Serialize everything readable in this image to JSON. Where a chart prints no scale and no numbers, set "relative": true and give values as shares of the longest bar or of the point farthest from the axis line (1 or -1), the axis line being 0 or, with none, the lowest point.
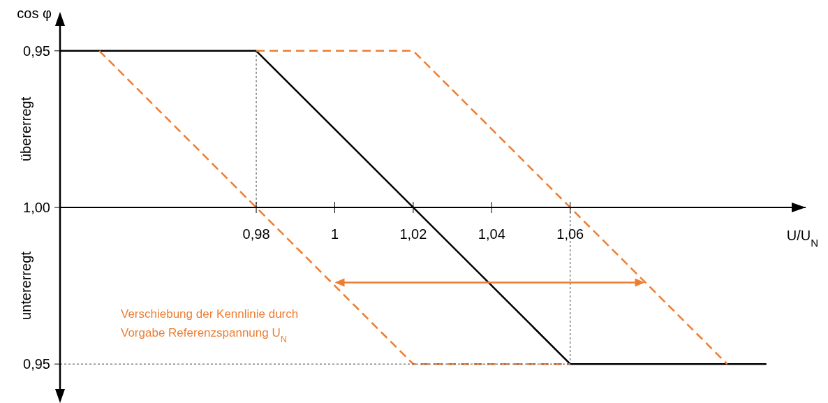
{
  "chart_data": {
    "type": "line",
    "ylabel": "cos φ",
    "xlabel": "U/U$_{N}$",
    "xlim": [
      0.93,
      1.12
    ],
    "relative": true,
    "xticks": [
      {
        "value": 0.98,
        "label": "0,98"
      },
      {
        "value": 1,
        "label": "1"
      },
      {
        "value": 1.02,
        "label": "1,02"
      },
      {
        "value": 1.04,
        "label": "1,04"
      },
      {
        "value": 1.06,
        "label": "1,06"
      }
    ],
    "grid": false,
    "series": [
      {
        "color": "#000000",
        "x": [
          0.93,
          0.98,
          1.06,
          1.11
        ],
        "values": [
          1,
          1,
          -1,
          -1
        ],
        "line_style": "solid"
      },
      {
        "color": "#ed7d31",
        "x": [
          0.94,
          1.02,
          1.06
        ],
        "values": [
          1,
          -1,
          -1
        ],
        "line_style": "dashed"
      },
      {
        "color": "#ed7d31",
        "x": [
          0.98,
          1.02,
          1.1
        ],
        "values": [
          1,
          1,
          -1
        ],
        "line_style": "dashed"
      },
      {
        "color": "#404040",
        "x": [
          0.98,
          0.98
        ],
        "values": [
          1,
          0
        ],
        "line_style": "dotted"
      },
      {
        "color": "#404040",
        "x": [
          1.06,
          1.06
        ],
        "values": [
          0,
          -1
        ],
        "line_style": "dotted"
      },
      {
        "color": "#404040",
        "x": [
          0.93,
          1.06
        ],
        "values": [
          -1,
          -1
        ],
        "line_style": "dotted"
      }
    ],
    "annotations": [
      "0,95",
      "1,00",
      "0,95",
      "übererregt",
      "untererregt",
      "Verschiebung der Kennlinie durch\nVorgabe Referenzspannung U$_{N}$"
    ]
  }
}
